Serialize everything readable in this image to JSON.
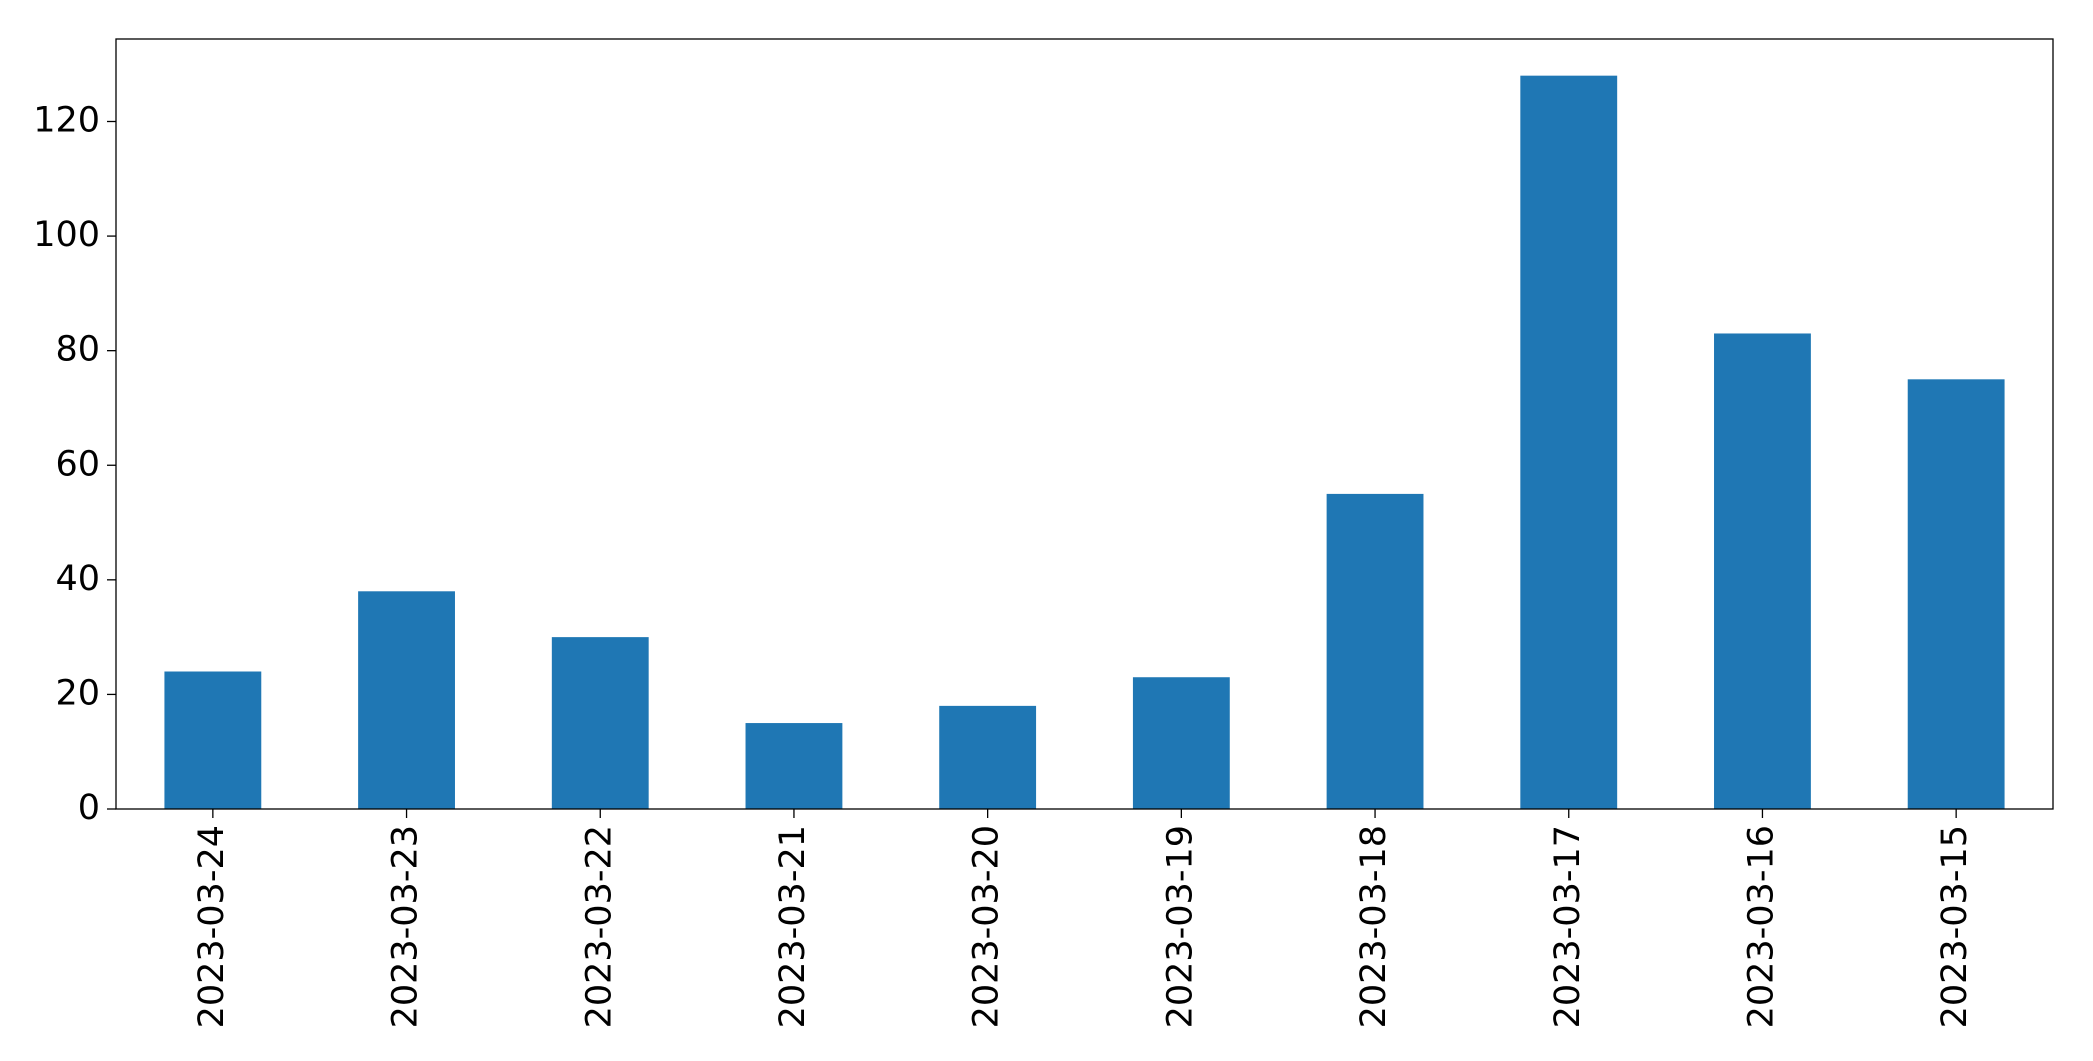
{
  "chart_data": {
    "type": "bar",
    "categories": [
      "2023-03-24",
      "2023-03-23",
      "2023-03-22",
      "2023-03-21",
      "2023-03-20",
      "2023-03-19",
      "2023-03-18",
      "2023-03-17",
      "2023-03-16",
      "2023-03-15"
    ],
    "values": [
      24,
      38,
      30,
      15,
      18,
      23,
      55,
      128,
      83,
      75
    ],
    "color": "#1f77b4",
    "ylim": [
      0,
      134.4
    ],
    "yticks": [
      0,
      20,
      40,
      60,
      80,
      100,
      120
    ],
    "grid": false
  }
}
